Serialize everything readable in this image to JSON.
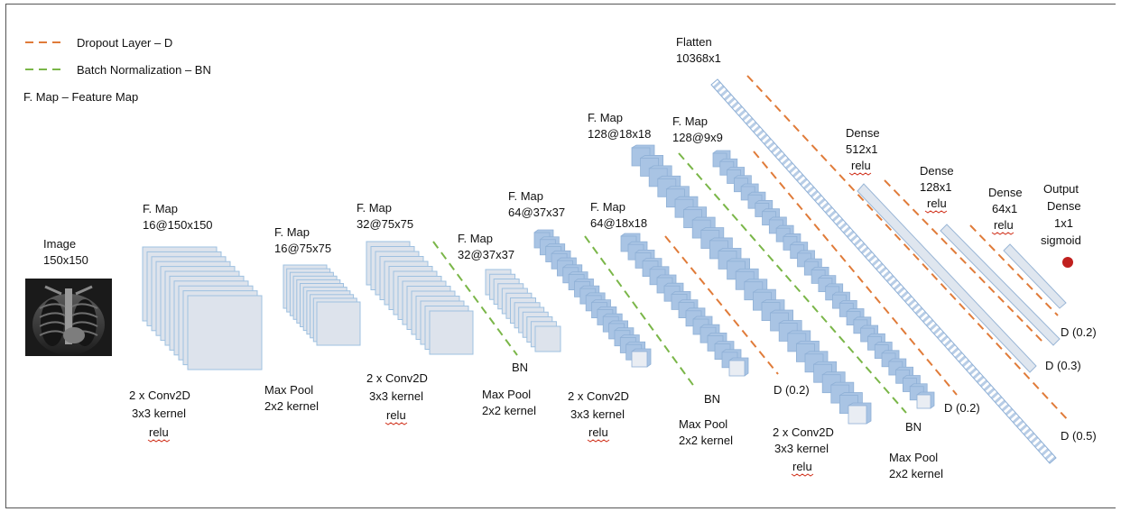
{
  "legend": {
    "dropout": "Dropout Layer –  D",
    "batchnorm": "Batch Normalization –  BN",
    "fmap": "F. Map – Feature Map",
    "dropout_color": "#e07b39",
    "batchnorm_color": "#7ab648"
  },
  "colors": {
    "map_fill": "#dde3ec",
    "map_stroke": "#9ec0e0",
    "block_fill": "#a9c4e4",
    "block_face": "#e9edf3",
    "output_dot": "#c0201e"
  },
  "input": {
    "label": "Image",
    "size": "150x150"
  },
  "maps": [
    {
      "label": "F. Map",
      "size": "16@150x150"
    },
    {
      "label": "F. Map",
      "size": "16@75x75"
    },
    {
      "label": "F. Map",
      "size": "32@75x75"
    },
    {
      "label": "F. Map",
      "size": "32@37x37"
    },
    {
      "label": "F. Map",
      "size": "64@37x37"
    },
    {
      "label": "F. Map",
      "size": "64@18x18"
    },
    {
      "label": "F. Map",
      "size": "128@18x18"
    },
    {
      "label": "F. Map",
      "size": "128@9x9"
    }
  ],
  "ops": {
    "conv1": {
      "mult": "2",
      "name": " x Conv2D",
      "kernel": "3x3 kernel",
      "act": "relu"
    },
    "pool1": {
      "name": "Max Pool",
      "kernel": "2x2 kernel"
    },
    "conv2": {
      "mult": "2",
      "name": " x Conv2D",
      "kernel": "3x3 kernel",
      "act": "relu"
    },
    "pool2": {
      "name": "Max Pool",
      "kernel": "2x2 kernel"
    },
    "conv3": {
      "mult": "2",
      "name": " x Conv2D",
      "kernel": "3x3 kernel",
      "act": "relu"
    },
    "pool3": {
      "name": "Max Pool",
      "kernel": "2x2 kernel"
    },
    "conv4": {
      "mult": "2",
      "name": " x Conv2D",
      "kernel": "3x3 kernel",
      "act": "relu"
    },
    "pool4": {
      "name": "Max Pool",
      "kernel": "2x2 kernel"
    }
  },
  "bn_labels": [
    "BN",
    "BN",
    "BN"
  ],
  "dropout_labels": [
    "D (0.2)",
    "D (0.2)",
    "D (0.5)",
    "D (0.3)",
    "D (0.2)"
  ],
  "flatten": {
    "label": "Flatten",
    "size": "10368x1"
  },
  "dense": [
    {
      "label": "Dense",
      "size": "512x1",
      "act": "relu"
    },
    {
      "label": "Dense",
      "size": "128x1",
      "act": "relu"
    },
    {
      "label": "Dense",
      "size": "64x1",
      "act": "relu"
    }
  ],
  "output": {
    "label": "Output",
    "type": "Dense",
    "size": "1x1",
    "act": "sigmoid"
  }
}
